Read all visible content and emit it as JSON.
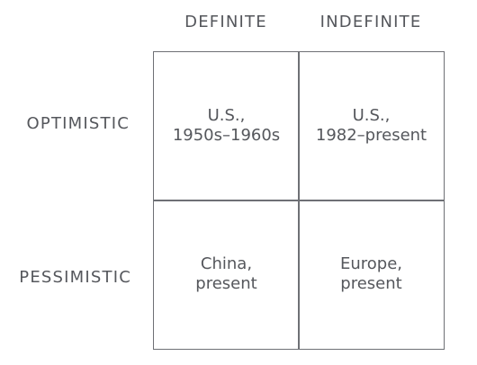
{
  "columns": {
    "definite": "DEFINITE",
    "indefinite": "INDEFINITE"
  },
  "rows": {
    "optimistic": "OPTIMISTIC",
    "pessimistic": "PESSIMISTIC"
  },
  "cells": {
    "optimistic_definite": "U.S.,\n1950s–1960s",
    "optimistic_indefinite": "U.S.,\n1982–present",
    "pessimistic_definite": "China,\npresent",
    "pessimistic_indefinite": "Europe,\npresent"
  },
  "colors": {
    "text": "#55575c",
    "grid_line": "#6e7075",
    "background": "#ffffff"
  }
}
